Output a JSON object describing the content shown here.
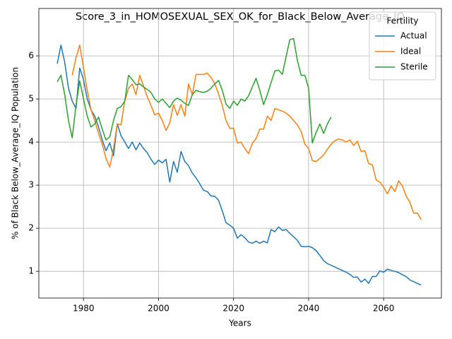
{
  "chart_data": {
    "type": "line",
    "title": "Score_3_in_HOMOSEXUAL_SEX_OK_for_Black_Below_Average_IQ",
    "xlabel": "Years",
    "ylabel": "% of Black Below_Average_IQ Population",
    "legend_title": "Fertility",
    "legend": "upper right",
    "grid": true,
    "xlim": [
      1968.1,
      2075.4
    ],
    "xticks": [
      1980,
      2000,
      2020,
      2040,
      2060
    ],
    "ylim": [
      0.38,
      7.1
    ],
    "yticks": [
      1,
      2,
      3,
      4,
      5,
      6
    ],
    "x": [
      1973,
      1974,
      1975,
      1976,
      1977,
      1978,
      1979,
      1980,
      1981,
      1982,
      1983,
      1984,
      1985,
      1986,
      1987,
      1988,
      1989,
      1990,
      1991,
      1992,
      1993,
      1994,
      1995,
      1996,
      1997,
      1998,
      1999,
      2000,
      2001,
      2002,
      2003,
      2004,
      2005,
      2006,
      2007,
      2008,
      2009,
      2010,
      2011,
      2012,
      2013,
      2014,
      2015,
      2016,
      2017,
      2018,
      2019,
      2020,
      2021,
      2022,
      2023,
      2024,
      2025,
      2026,
      2027,
      2028,
      2029,
      2030,
      2031,
      2032,
      2033,
      2034,
      2035,
      2036,
      2037,
      2038,
      2039,
      2040,
      2041,
      2042,
      2043,
      2044,
      2045,
      2046,
      2047,
      2048,
      2049,
      2050,
      2051,
      2052,
      2053,
      2054,
      2055,
      2056,
      2057,
      2058,
      2059,
      2060,
      2061,
      2062,
      2063,
      2064,
      2065,
      2066,
      2067,
      2068,
      2069,
      2070
    ],
    "series": [
      {
        "name": "Actual",
        "color": "#1f77b4",
        "values": [
          5.82,
          6.25,
          5.85,
          5.25,
          4.95,
          4.78,
          5.72,
          5.45,
          5.0,
          4.75,
          4.6,
          4.35,
          4.05,
          3.8,
          3.98,
          3.68,
          4.42,
          4.15,
          4.0,
          3.85,
          4.0,
          3.82,
          3.98,
          3.85,
          3.75,
          3.6,
          3.48,
          3.58,
          3.52,
          3.6,
          3.07,
          3.55,
          3.3,
          3.78,
          3.55,
          3.45,
          3.28,
          3.17,
          3.03,
          2.88,
          2.85,
          2.75,
          2.74,
          2.65,
          2.4,
          2.13,
          2.07,
          2.0,
          1.77,
          1.85,
          1.78,
          1.68,
          1.65,
          1.7,
          1.65,
          1.7,
          1.66,
          1.97,
          1.92,
          2.03,
          1.95,
          1.97,
          1.88,
          1.8,
          1.72,
          1.58,
          1.57,
          1.58,
          1.55,
          1.48,
          1.37,
          1.25,
          1.18,
          1.14,
          1.1,
          1.06,
          1.02,
          0.98,
          0.93,
          0.86,
          0.87,
          0.75,
          0.82,
          0.72,
          0.88,
          0.88,
          1.01,
          0.98,
          1.05,
          1.02,
          1.0,
          0.97,
          0.92,
          0.88,
          0.8,
          0.76,
          0.72,
          0.68
        ]
      },
      {
        "name": "Ideal",
        "color": "#ff7f0e",
        "values": [
          null,
          null,
          null,
          null,
          5.55,
          5.95,
          6.25,
          5.72,
          5.2,
          4.75,
          4.5,
          4.2,
          3.95,
          3.62,
          3.42,
          3.85,
          4.42,
          4.4,
          4.95,
          5.25,
          5.35,
          5.1,
          5.55,
          5.3,
          5.05,
          4.85,
          4.63,
          4.67,
          4.5,
          4.27,
          4.45,
          4.87,
          4.62,
          4.87,
          4.6,
          5.35,
          5.1,
          5.57,
          5.57,
          5.57,
          5.6,
          5.5,
          5.35,
          5.12,
          4.85,
          4.5,
          4.32,
          4.32,
          3.98,
          4.0,
          3.85,
          3.73,
          3.97,
          4.08,
          4.3,
          4.3,
          4.6,
          4.5,
          4.78,
          4.75,
          4.72,
          4.67,
          4.6,
          4.5,
          4.4,
          4.25,
          3.95,
          3.85,
          3.57,
          3.55,
          3.62,
          3.7,
          3.83,
          3.95,
          4.03,
          4.07,
          4.05,
          4.0,
          4.05,
          3.92,
          4.02,
          3.78,
          3.8,
          3.5,
          3.47,
          3.12,
          3.07,
          2.95,
          2.8,
          2.98,
          2.85,
          3.1,
          2.98,
          2.75,
          2.6,
          2.35,
          2.35,
          2.2
        ]
      },
      {
        "name": "Sterile",
        "color": "#2ca02c",
        "values": [
          5.4,
          5.55,
          5.1,
          4.5,
          4.1,
          4.85,
          5.42,
          5.0,
          4.6,
          4.35,
          4.42,
          4.58,
          4.3,
          4.05,
          4.12,
          4.5,
          4.78,
          4.82,
          4.95,
          5.55,
          5.45,
          5.33,
          5.35,
          5.28,
          5.22,
          5.15,
          5.0,
          4.92,
          5.0,
          4.9,
          4.8,
          4.95,
          5.02,
          4.97,
          4.9,
          4.85,
          5.1,
          5.2,
          5.17,
          5.15,
          5.18,
          5.25,
          5.35,
          5.43,
          5.2,
          4.88,
          4.78,
          4.95,
          4.85,
          5.0,
          4.95,
          5.07,
          5.28,
          5.48,
          5.2,
          4.87,
          5.1,
          5.38,
          5.65,
          5.67,
          5.57,
          5.98,
          6.38,
          6.4,
          5.9,
          5.55,
          5.55,
          5.25,
          3.98,
          4.22,
          4.42,
          4.2,
          4.42,
          4.58,
          null,
          null,
          null,
          null,
          null,
          null,
          null,
          null,
          null,
          null,
          null,
          null,
          null,
          null,
          null,
          null,
          null,
          null,
          null,
          null,
          null,
          null,
          null,
          null
        ]
      }
    ]
  }
}
